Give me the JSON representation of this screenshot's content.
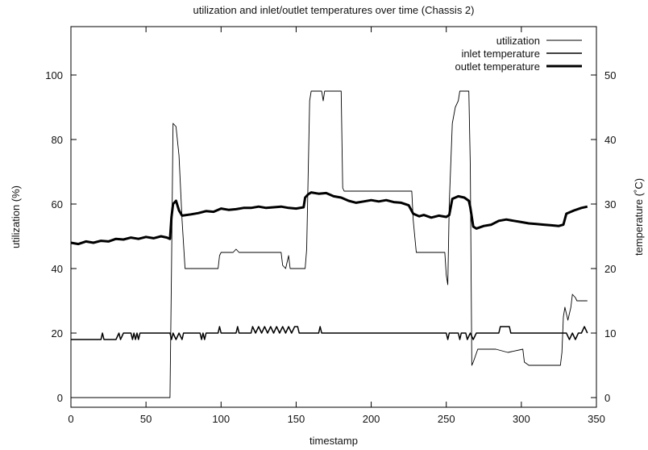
{
  "chart_data": {
    "type": "line",
    "title": "utilization and inlet/outlet temperatures over time (Chassis 2)",
    "xlabel": "timestamp",
    "ylabel": "utilization (%)",
    "y2label": "temperature (˚C)",
    "xlim": [
      0,
      350
    ],
    "ylim": [
      -3,
      115
    ],
    "y2lim": [
      -1.5,
      57.5
    ],
    "x_ticks": [
      0,
      50,
      100,
      150,
      200,
      250,
      300,
      350
    ],
    "y_ticks": [
      0,
      20,
      40,
      60,
      80,
      100
    ],
    "y2_ticks": [
      0,
      10,
      20,
      30,
      40,
      50
    ],
    "grid": false,
    "legend_position": "top-right",
    "series": [
      {
        "name": "utilization",
        "axis": "left",
        "line": "thin",
        "points": [
          [
            0,
            0
          ],
          [
            66,
            0
          ],
          [
            67,
            40
          ],
          [
            68,
            85
          ],
          [
            70,
            84
          ],
          [
            72,
            75
          ],
          [
            74,
            55
          ],
          [
            76,
            40
          ],
          [
            98,
            40
          ],
          [
            99,
            44
          ],
          [
            100,
            45
          ],
          [
            108,
            45
          ],
          [
            110,
            46
          ],
          [
            112,
            45
          ],
          [
            140,
            45
          ],
          [
            141,
            41
          ],
          [
            143,
            40
          ],
          [
            145,
            44
          ],
          [
            146,
            40
          ],
          [
            156,
            40
          ],
          [
            157,
            46
          ],
          [
            159,
            92
          ],
          [
            160,
            95
          ],
          [
            167,
            95
          ],
          [
            168,
            92
          ],
          [
            169,
            95
          ],
          [
            180,
            95
          ],
          [
            181,
            65
          ],
          [
            182,
            64
          ],
          [
            227,
            64
          ],
          [
            228,
            55
          ],
          [
            230,
            45
          ],
          [
            249,
            45
          ],
          [
            250,
            38
          ],
          [
            251,
            35
          ],
          [
            252,
            60
          ],
          [
            254,
            85
          ],
          [
            256,
            90
          ],
          [
            258,
            92
          ],
          [
            259,
            95
          ],
          [
            265,
            95
          ],
          [
            266,
            72
          ],
          [
            267,
            10
          ],
          [
            268,
            11
          ],
          [
            271,
            15
          ],
          [
            283,
            15
          ],
          [
            291,
            14
          ],
          [
            301,
            15
          ],
          [
            302,
            11
          ],
          [
            305,
            10
          ],
          [
            326,
            10
          ],
          [
            327,
            14
          ],
          [
            328,
            25
          ],
          [
            329,
            28
          ],
          [
            331,
            24
          ],
          [
            333,
            28
          ],
          [
            334,
            32
          ],
          [
            336,
            31
          ],
          [
            337,
            30
          ],
          [
            344,
            30
          ]
        ]
      },
      {
        "name": "inlet temperature",
        "axis": "right",
        "line": "medium",
        "points": [
          [
            0,
            9
          ],
          [
            20,
            9
          ],
          [
            21,
            10
          ],
          [
            22,
            9
          ],
          [
            30,
            9
          ],
          [
            32,
            10
          ],
          [
            33,
            9
          ],
          [
            35,
            10
          ],
          [
            40,
            10
          ],
          [
            41,
            9
          ],
          [
            42,
            10
          ],
          [
            43,
            9
          ],
          [
            44,
            10
          ],
          [
            45,
            9
          ],
          [
            46,
            10
          ],
          [
            66,
            10
          ],
          [
            67,
            9
          ],
          [
            68,
            10
          ],
          [
            70,
            9
          ],
          [
            72,
            10
          ],
          [
            74,
            9
          ],
          [
            75,
            10
          ],
          [
            86,
            10
          ],
          [
            87,
            9
          ],
          [
            88,
            10
          ],
          [
            89,
            9
          ],
          [
            90,
            10
          ],
          [
            98,
            10
          ],
          [
            99,
            11
          ],
          [
            100,
            10
          ],
          [
            110,
            10
          ],
          [
            111,
            11
          ],
          [
            112,
            10
          ],
          [
            120,
            10
          ],
          [
            121,
            11
          ],
          [
            123,
            10
          ],
          [
            125,
            11
          ],
          [
            127,
            10
          ],
          [
            129,
            11
          ],
          [
            131,
            10
          ],
          [
            133,
            11
          ],
          [
            135,
            10
          ],
          [
            137,
            11
          ],
          [
            139,
            10
          ],
          [
            141,
            11
          ],
          [
            143,
            10
          ],
          [
            145,
            11
          ],
          [
            147,
            10
          ],
          [
            149,
            11
          ],
          [
            151,
            11
          ],
          [
            152,
            10
          ],
          [
            165,
            10
          ],
          [
            166,
            11
          ],
          [
            167,
            10
          ],
          [
            250,
            10
          ],
          [
            251,
            9
          ],
          [
            252,
            10
          ],
          [
            258,
            10
          ],
          [
            259,
            9
          ],
          [
            260,
            10
          ],
          [
            263,
            10
          ],
          [
            264,
            9
          ],
          [
            266,
            10
          ],
          [
            268,
            9
          ],
          [
            270,
            10
          ],
          [
            285,
            10
          ],
          [
            286,
            11
          ],
          [
            292,
            11
          ],
          [
            293,
            10
          ],
          [
            330,
            10
          ],
          [
            332,
            9
          ],
          [
            334,
            10
          ],
          [
            336,
            9
          ],
          [
            338,
            10
          ],
          [
            340,
            10
          ],
          [
            342,
            11
          ],
          [
            344,
            10
          ]
        ]
      },
      {
        "name": "outlet temperature",
        "axis": "right",
        "line": "thick",
        "points": [
          [
            0,
            24
          ],
          [
            5,
            23.8
          ],
          [
            10,
            24.2
          ],
          [
            15,
            24
          ],
          [
            20,
            24.3
          ],
          [
            25,
            24.2
          ],
          [
            30,
            24.6
          ],
          [
            35,
            24.5
          ],
          [
            40,
            24.8
          ],
          [
            45,
            24.6
          ],
          [
            50,
            24.9
          ],
          [
            55,
            24.7
          ],
          [
            60,
            25
          ],
          [
            64,
            24.8
          ],
          [
            66,
            24.6
          ],
          [
            67,
            28
          ],
          [
            68,
            30
          ],
          [
            70,
            30.5
          ],
          [
            72,
            29
          ],
          [
            74,
            28.2
          ],
          [
            80,
            28.4
          ],
          [
            85,
            28.6
          ],
          [
            90,
            28.9
          ],
          [
            95,
            28.8
          ],
          [
            100,
            29.3
          ],
          [
            105,
            29.1
          ],
          [
            110,
            29.2
          ],
          [
            115,
            29.4
          ],
          [
            120,
            29.4
          ],
          [
            125,
            29.6
          ],
          [
            130,
            29.4
          ],
          [
            135,
            29.5
          ],
          [
            140,
            29.6
          ],
          [
            145,
            29.4
          ],
          [
            150,
            29.3
          ],
          [
            155,
            29.5
          ],
          [
            156,
            31
          ],
          [
            158,
            31.5
          ],
          [
            160,
            31.8
          ],
          [
            165,
            31.6
          ],
          [
            170,
            31.7
          ],
          [
            175,
            31.2
          ],
          [
            180,
            31.0
          ],
          [
            185,
            30.5
          ],
          [
            190,
            30.2
          ],
          [
            195,
            30.4
          ],
          [
            200,
            30.6
          ],
          [
            205,
            30.4
          ],
          [
            210,
            30.6
          ],
          [
            215,
            30.3
          ],
          [
            220,
            30.2
          ],
          [
            225,
            29.8
          ],
          [
            228,
            28.5
          ],
          [
            232,
            28.1
          ],
          [
            235,
            28.3
          ],
          [
            240,
            27.9
          ],
          [
            245,
            28.2
          ],
          [
            250,
            28.0
          ],
          [
            252,
            28.3
          ],
          [
            254,
            30.8
          ],
          [
            258,
            31.2
          ],
          [
            262,
            31.0
          ],
          [
            265,
            30.5
          ],
          [
            266,
            29.5
          ],
          [
            268,
            26.5
          ],
          [
            270,
            26.2
          ],
          [
            275,
            26.6
          ],
          [
            280,
            26.8
          ],
          [
            285,
            27.4
          ],
          [
            290,
            27.6
          ],
          [
            295,
            27.4
          ],
          [
            300,
            27.2
          ],
          [
            305,
            27.0
          ],
          [
            310,
            26.9
          ],
          [
            315,
            26.8
          ],
          [
            320,
            26.7
          ],
          [
            325,
            26.6
          ],
          [
            328,
            26.8
          ],
          [
            330,
            28.5
          ],
          [
            335,
            29.0
          ],
          [
            340,
            29.4
          ],
          [
            344,
            29.6
          ]
        ]
      }
    ]
  }
}
